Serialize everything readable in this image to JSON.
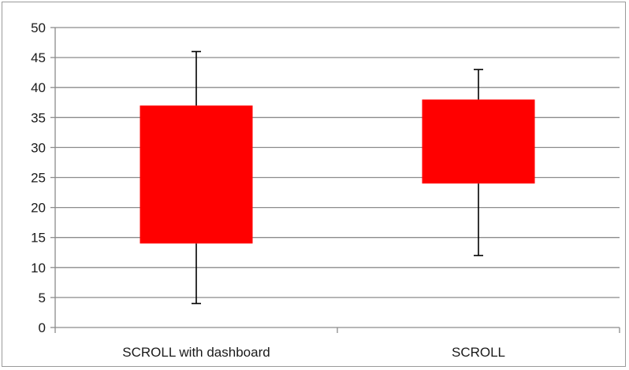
{
  "chart_data": {
    "type": "boxplot",
    "title": "",
    "xlabel": "",
    "ylabel": "",
    "ylim": [
      0,
      50
    ],
    "yticks": [
      0,
      5,
      10,
      15,
      20,
      25,
      30,
      35,
      40,
      45,
      50
    ],
    "grid": true,
    "legend": "none",
    "categories": [
      "SCROLL with dashboard",
      "SCROLL"
    ],
    "boxes": [
      {
        "category": "SCROLL with dashboard",
        "min": 4,
        "q1": 14,
        "q3": 37,
        "max": 46
      },
      {
        "category": "SCROLL",
        "min": 12,
        "q1": 24,
        "q3": 38,
        "max": 43
      }
    ],
    "colors": {
      "box": "#ff0000",
      "whisker": "#000000",
      "grid": "#8c8c8c",
      "axis": "#8c8c8c"
    }
  }
}
